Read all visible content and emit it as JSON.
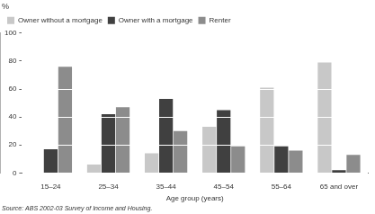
{
  "chart_data": {
    "type": "bar",
    "y_label": "%",
    "x_label": "Age group (years)",
    "caption": "Source: ABS 2002-03 Survey of Income and Housing.",
    "categories": [
      "15–24",
      "25–34",
      "35–44",
      "45–54",
      "55–64",
      "65 and over"
    ],
    "series": [
      {
        "name": "Owner without a mortgage",
        "color": "#c8c8c8",
        "values": [
          0,
          6,
          14,
          33,
          61,
          79
        ]
      },
      {
        "name": "Owner with a mortgage",
        "color": "#404040",
        "values": [
          17,
          42,
          53,
          45,
          19,
          2
        ]
      },
      {
        "name": "Renter",
        "color": "#8c8c8c",
        "values": [
          76,
          47,
          30,
          19,
          16,
          13
        ]
      }
    ],
    "ylim": [
      0,
      100
    ],
    "yticks": [
      0,
      20,
      40,
      60,
      80,
      100
    ],
    "grid": true,
    "legend": "upper left"
  }
}
